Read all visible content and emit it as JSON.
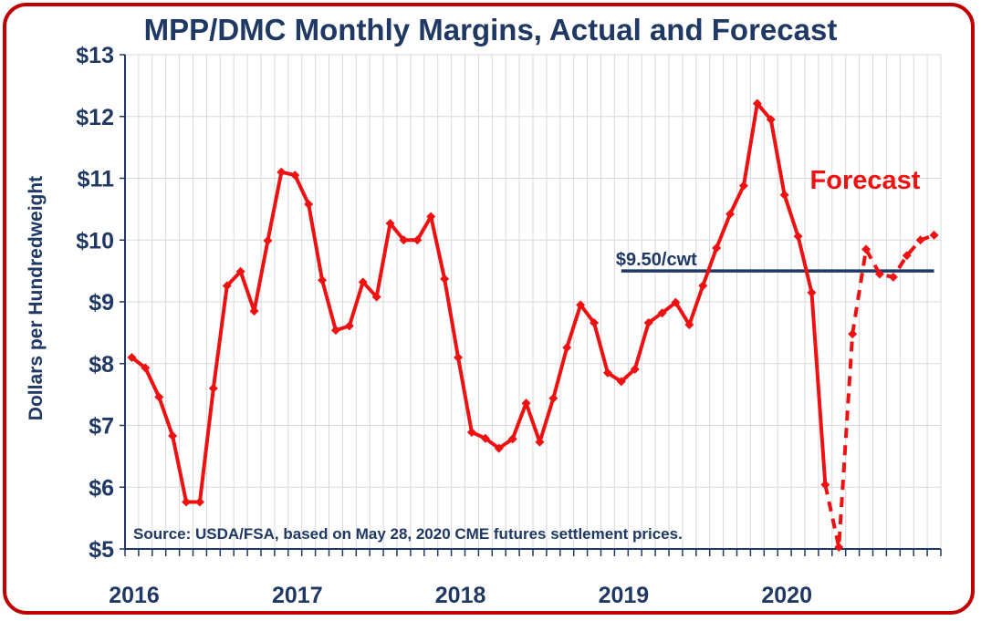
{
  "chart_data": {
    "type": "line",
    "title": "MPP/DMC Monthly Margins, Actual and Forecast",
    "ylabel": "Dollars per Hundredweight",
    "xlabel": "",
    "ylim": [
      5,
      13
    ],
    "y_ticks": [
      "$5",
      "$6",
      "$7",
      "$8",
      "$9",
      "$10",
      "$11",
      "$12",
      "$13"
    ],
    "x_ticks": [
      "2016",
      "2017",
      "2018",
      "2019",
      "2020"
    ],
    "grid": true,
    "annotation_forecast": "Forecast",
    "reference_line": {
      "label": "$9.50/cwt",
      "value": 9.5,
      "from": "2019-01",
      "to": "2020-12"
    },
    "source_note": "Source:  USDA/FSA, based on May 28, 2020 CME futures settlement prices.",
    "series": [
      {
        "style": "solid",
        "color": "#ee1111",
        "x": [
          "2016-01",
          "2016-02",
          "2016-03",
          "2016-04",
          "2016-05",
          "2016-06",
          "2016-07",
          "2016-08",
          "2016-09",
          "2016-10",
          "2016-11",
          "2016-12",
          "2017-01",
          "2017-02",
          "2017-03",
          "2017-04",
          "2017-05",
          "2017-06",
          "2017-07",
          "2017-08",
          "2017-09",
          "2017-10",
          "2017-11",
          "2017-12",
          "2018-01",
          "2018-02",
          "2018-03",
          "2018-04",
          "2018-05",
          "2018-06",
          "2018-07",
          "2018-08",
          "2018-09",
          "2018-10",
          "2018-11",
          "2018-12",
          "2019-01",
          "2019-02",
          "2019-03",
          "2019-04",
          "2019-05",
          "2019-06",
          "2019-07",
          "2019-08",
          "2019-09",
          "2019-10",
          "2019-11",
          "2019-12",
          "2020-01",
          "2020-02",
          "2020-03",
          "2020-04"
        ],
        "y": [
          8.1,
          7.93,
          7.46,
          6.83,
          5.76,
          5.76,
          7.6,
          9.26,
          9.49,
          8.85,
          9.99,
          11.1,
          11.05,
          10.58,
          9.35,
          8.54,
          8.61,
          9.32,
          9.08,
          10.27,
          10.0,
          10.0,
          10.38,
          9.37,
          8.1,
          6.89,
          6.79,
          6.63,
          6.78,
          7.36,
          6.73,
          7.44,
          8.26,
          8.95,
          8.66,
          7.85,
          7.71,
          7.91,
          8.66,
          8.82,
          8.99,
          8.63,
          9.26,
          9.87,
          10.42,
          10.88,
          12.21,
          11.95,
          10.73,
          10.06,
          9.15,
          6.04
        ]
      },
      {
        "style": "dashed",
        "color": "#ee1111",
        "x": [
          "2020-04",
          "2020-05",
          "2020-06",
          "2020-07",
          "2020-08",
          "2020-09",
          "2020-10",
          "2020-11",
          "2020-12"
        ],
        "y": [
          6.04,
          5.03,
          8.48,
          9.85,
          9.45,
          9.4,
          9.75,
          10.0,
          10.08
        ]
      }
    ]
  }
}
